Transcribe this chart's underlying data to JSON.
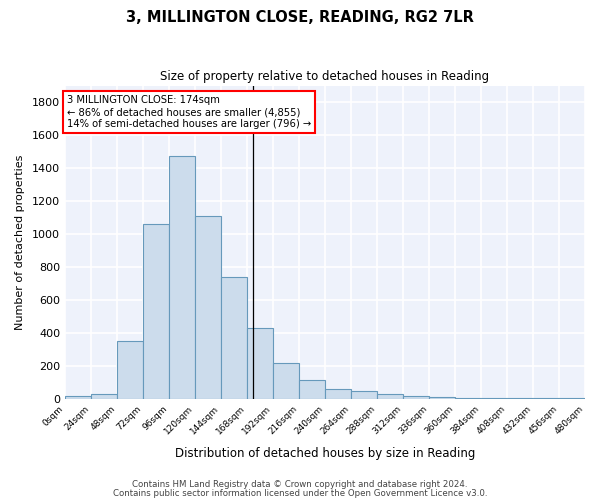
{
  "title": "3, MILLINGTON CLOSE, READING, RG2 7LR",
  "subtitle": "Size of property relative to detached houses in Reading",
  "xlabel": "Distribution of detached houses by size in Reading",
  "ylabel": "Number of detached properties",
  "bar_color": "#ccdcec",
  "bar_edge_color": "#6699bb",
  "background_color": "#eef2fb",
  "grid_color": "white",
  "bins": [
    0,
    24,
    48,
    72,
    96,
    120,
    144,
    168,
    192,
    216,
    240,
    264,
    288,
    312,
    336,
    360,
    384,
    408,
    432,
    456,
    480
  ],
  "values": [
    15,
    30,
    350,
    1060,
    1470,
    1110,
    740,
    430,
    220,
    115,
    60,
    50,
    30,
    20,
    10,
    8,
    5,
    4,
    3,
    3
  ],
  "property_size": 174,
  "annotation_line1": "3 MILLINGTON CLOSE: 174sqm",
  "annotation_line2": "← 86% of detached houses are smaller (4,855)",
  "annotation_line3": "14% of semi-detached houses are larger (796) →",
  "vline_x": 174,
  "xlim": [
    0,
    480
  ],
  "ylim": [
    0,
    1900
  ],
  "yticks": [
    0,
    200,
    400,
    600,
    800,
    1000,
    1200,
    1400,
    1600,
    1800
  ],
  "tick_labels": [
    "0sqm",
    "24sqm",
    "48sqm",
    "72sqm",
    "96sqm",
    "120sqm",
    "144sqm",
    "168sqm",
    "192sqm",
    "216sqm",
    "240sqm",
    "264sqm",
    "288sqm",
    "312sqm",
    "336sqm",
    "360sqm",
    "384sqm",
    "408sqm",
    "432sqm",
    "456sqm",
    "480sqm"
  ],
  "footnote1": "Contains HM Land Registry data © Crown copyright and database right 2024.",
  "footnote2": "Contains public sector information licensed under the Open Government Licence v3.0."
}
